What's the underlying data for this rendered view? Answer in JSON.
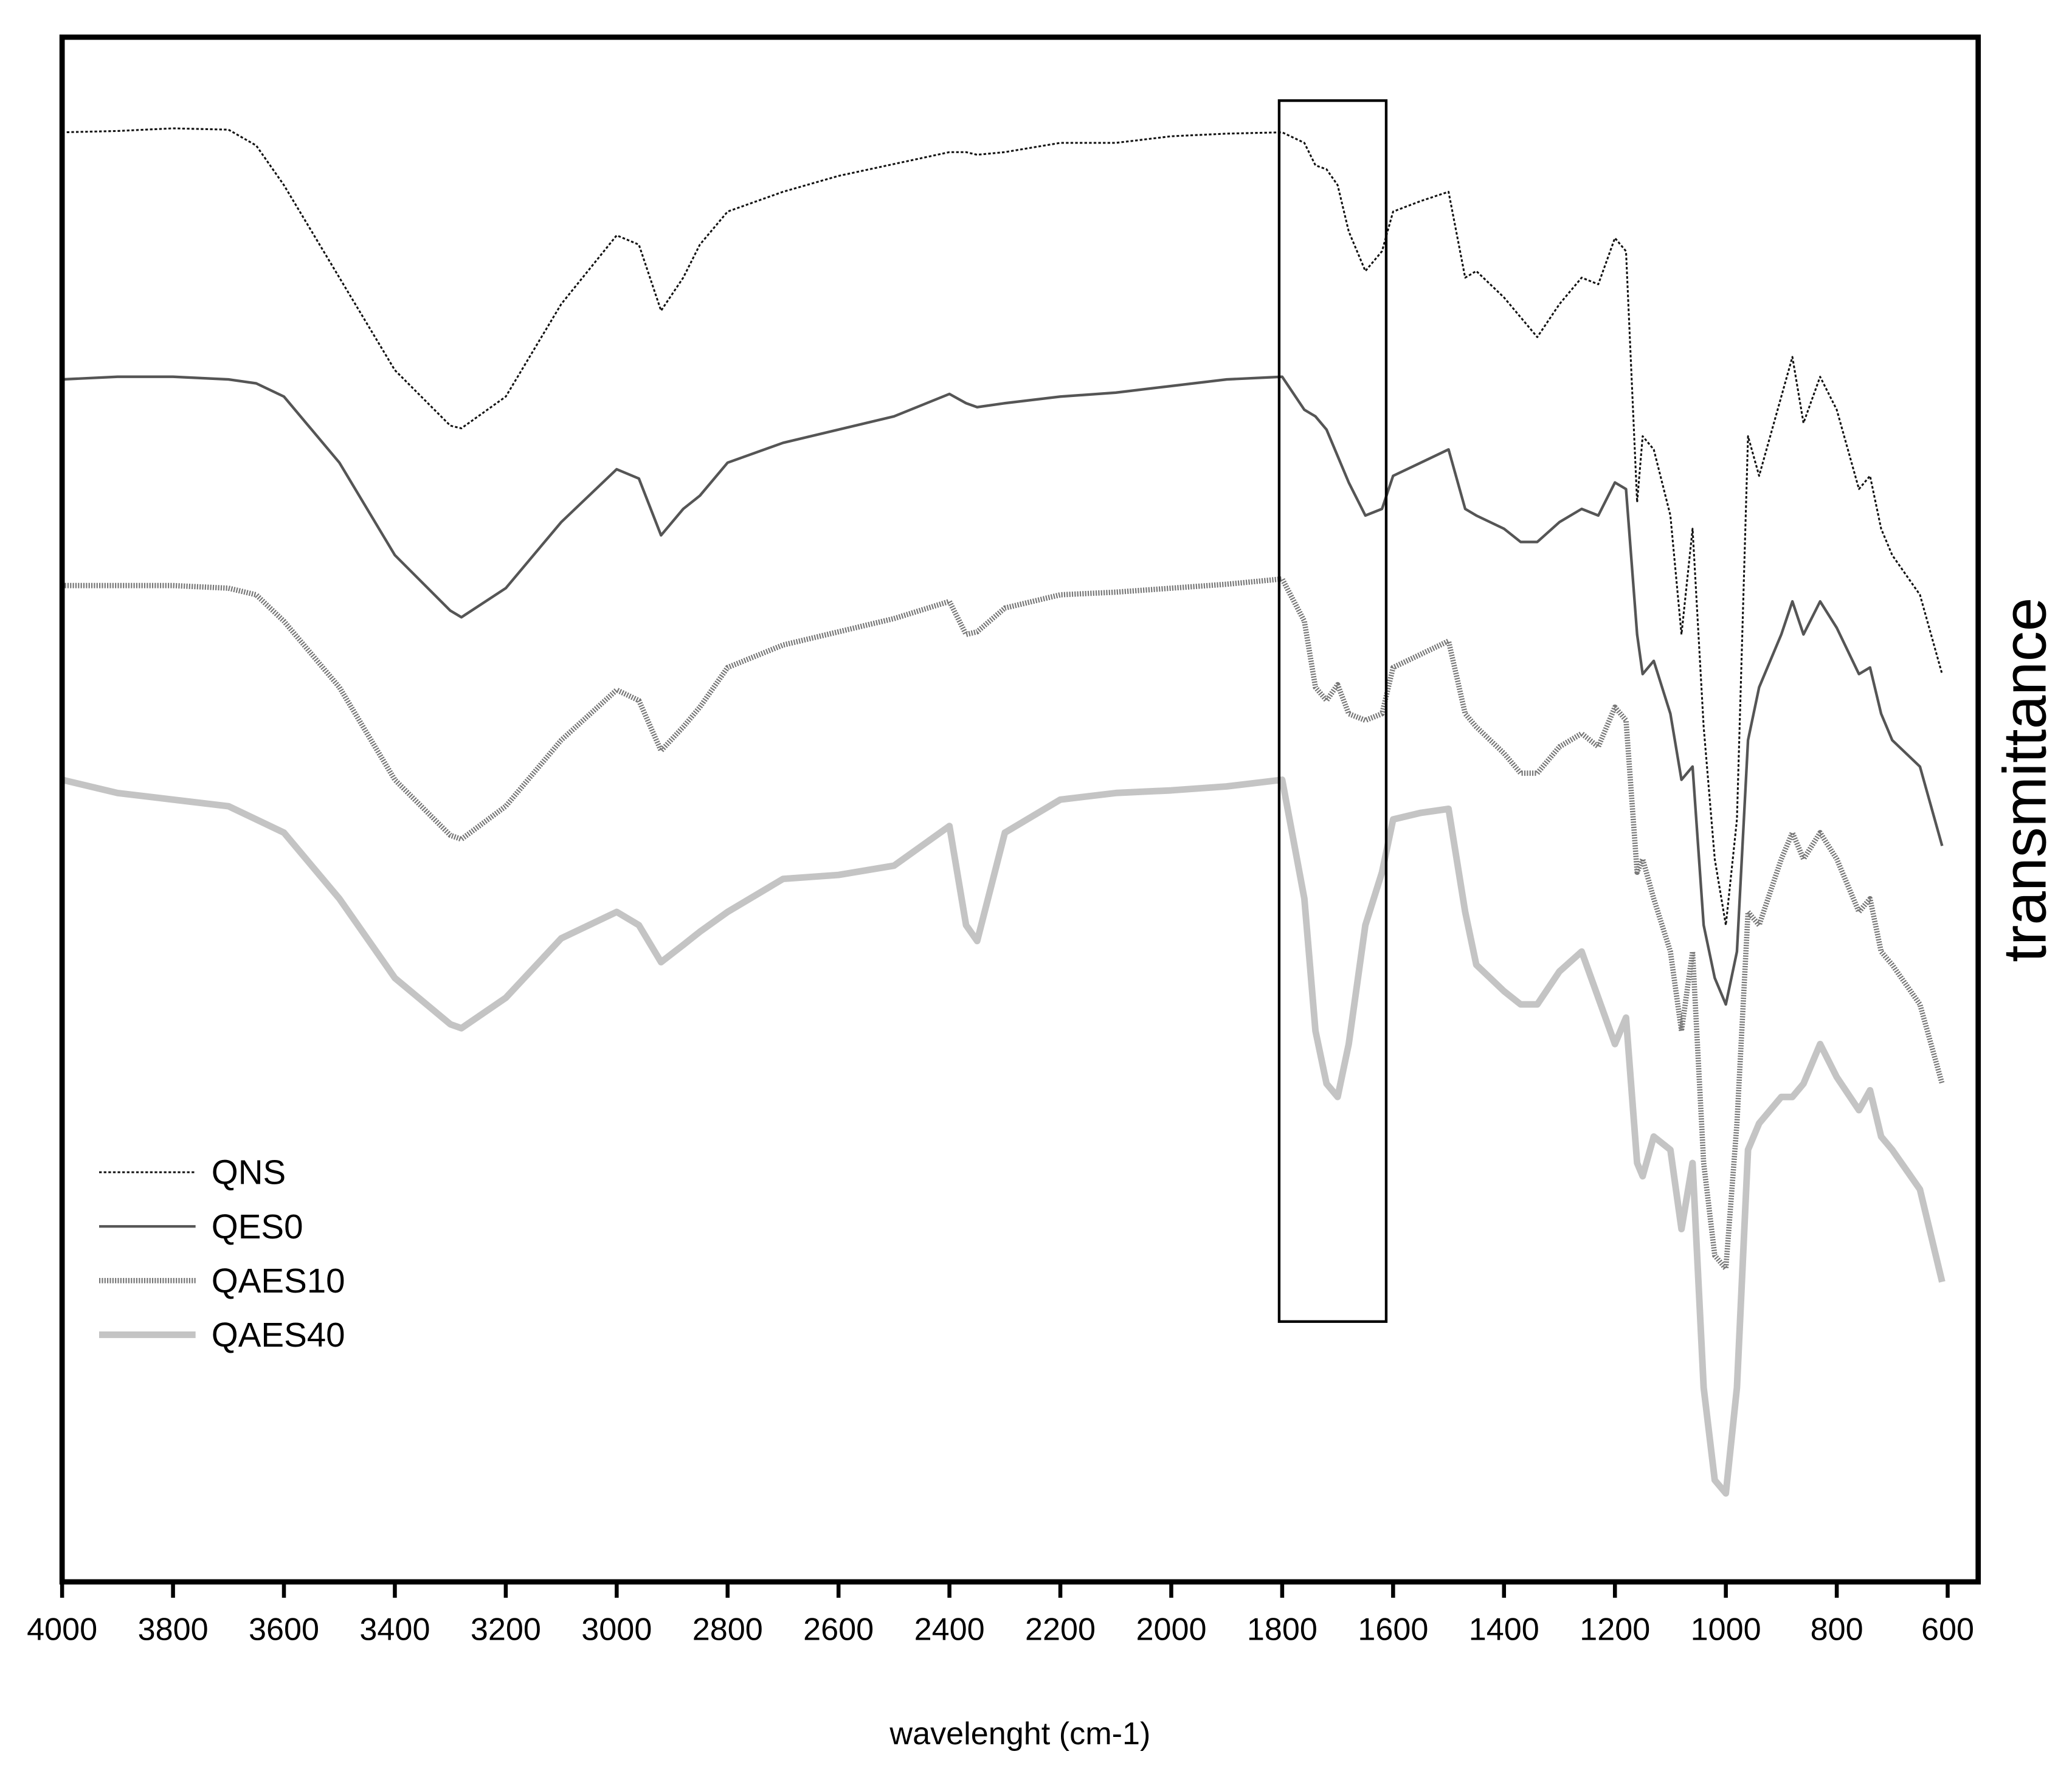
{
  "chart_data": {
    "type": "line",
    "xlabel": "wavelenght (cm-1)",
    "ylabel": "transmittance",
    "xlim": [
      4000,
      545
    ],
    "ylim": [
      0.3,
      117.2
    ],
    "xticks": [
      4000,
      3800,
      3600,
      3400,
      3200,
      3000,
      2800,
      2600,
      2400,
      2200,
      2000,
      1800,
      1600,
      1400,
      1200,
      1000,
      800,
      600
    ],
    "legend": "lower left",
    "x": [
      4000,
      3900,
      3800,
      3700,
      3650,
      3600,
      3500,
      3400,
      3300,
      3280,
      3200,
      3100,
      3000,
      2960,
      2920,
      2880,
      2850,
      2800,
      2700,
      2600,
      2500,
      2400,
      2370,
      2350,
      2300,
      2200,
      2100,
      2000,
      1900,
      1800,
      1760,
      1740,
      1720,
      1700,
      1680,
      1650,
      1620,
      1600,
      1550,
      1500,
      1470,
      1450,
      1400,
      1370,
      1340,
      1300,
      1260,
      1230,
      1200,
      1180,
      1160,
      1150,
      1130,
      1100,
      1080,
      1060,
      1040,
      1020,
      1000,
      980,
      960,
      940,
      900,
      880,
      860,
      830,
      800,
      760,
      740,
      720,
      700,
      650,
      610
    ],
    "series": [
      {
        "name": "QNS",
        "color": "#111111",
        "values": [
          110,
          110.1,
          110.3,
          110.2,
          109,
          106,
          99,
          92,
          87.8,
          87.6,
          90,
          97,
          102.2,
          101.5,
          96.5,
          99,
          101.5,
          104,
          105.5,
          106.7,
          107.6,
          108.5,
          108.5,
          108.3,
          108.5,
          109.2,
          109.2,
          109.7,
          109.9,
          110,
          109.2,
          107.5,
          107.2,
          106,
          102.5,
          99.5,
          101,
          104,
          104.8,
          105.5,
          99,
          99.5,
          97.5,
          96,
          94.5,
          97,
          99,
          98.5,
          102,
          101,
          82,
          87,
          86,
          81,
          72,
          80,
          65,
          55,
          50,
          58,
          87,
          84,
          90,
          93,
          88,
          91.5,
          89,
          83,
          84,
          80,
          78,
          75,
          69
        ]
      },
      {
        "name": "QES0",
        "color": "#555555",
        "values": [
          91.3,
          91.5,
          91.5,
          91.3,
          91,
          90,
          85,
          78,
          73.8,
          73.3,
          75.5,
          80.5,
          84.5,
          83.8,
          79.5,
          81.5,
          82.5,
          85,
          86.5,
          87.5,
          88.5,
          90.2,
          89.5,
          89.2,
          89.5,
          90,
          90.3,
          90.8,
          91.3,
          91.5,
          89,
          88.5,
          87.5,
          85.5,
          83.5,
          81,
          81.5,
          84,
          85,
          86,
          81.5,
          81,
          80,
          79,
          79,
          80.5,
          81.5,
          81,
          83.5,
          83,
          72,
          69,
          70,
          66,
          61,
          62,
          50,
          46,
          44,
          48,
          64,
          68,
          72,
          74.5,
          72,
          74.5,
          72.5,
          69,
          69.5,
          66,
          64,
          62,
          56
        ]
      },
      {
        "name": "QAES10",
        "color": "#777777",
        "values": [
          75.7,
          75.7,
          75.7,
          75.5,
          75,
          73,
          68,
          61,
          56.8,
          56.5,
          59,
          64,
          67.8,
          67,
          63.2,
          65,
          66.5,
          69.5,
          71.2,
          72.2,
          73.2,
          74.5,
          72,
          72.2,
          74,
          75,
          75.2,
          75.5,
          75.8,
          76.2,
          73,
          68,
          67,
          68.2,
          66,
          65.5,
          66,
          69.5,
          70.5,
          71.5,
          66,
          65,
          63,
          61.5,
          61.5,
          63.5,
          64.5,
          63.5,
          66.5,
          65.5,
          54,
          55,
          52,
          48,
          42,
          48,
          32,
          25,
          24,
          35,
          51,
          50,
          55,
          57,
          55,
          57,
          55,
          51,
          52,
          48,
          47,
          44,
          38
        ]
      },
      {
        "name": "QAES40",
        "color": "#c4c4c4",
        "values": [
          61,
          60,
          59.5,
          59,
          58,
          57,
          52,
          46,
          42.5,
          42.2,
          44.5,
          49,
          51,
          50,
          47.2,
          48.5,
          49.5,
          51,
          53.5,
          53.8,
          54.5,
          57.5,
          50,
          48.8,
          57,
          59.5,
          60,
          60.2,
          60.5,
          61,
          52,
          42,
          38,
          37,
          41,
          50,
          54,
          58,
          58.5,
          58.8,
          51,
          47,
          45,
          44,
          44,
          46.5,
          48,
          44.5,
          41,
          43,
          32,
          31,
          34,
          33,
          27,
          32,
          15,
          8,
          7,
          15,
          33,
          35,
          37,
          37,
          38,
          41,
          38.5,
          36,
          37.5,
          34,
          33,
          30,
          23
        ]
      }
    ]
  }
}
